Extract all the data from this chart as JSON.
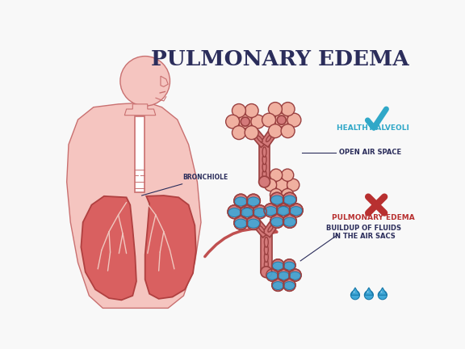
{
  "title": "PULMONARY EDEMA",
  "title_color": "#2b2d5b",
  "title_fontsize": 19,
  "bg_color": "#f8f8f8",
  "body_fill": "#f5c5c0",
  "body_stroke": "#c97070",
  "lung_fill": "#d96060",
  "lung_stroke": "#b04040",
  "bronchiole_fill": "#d47a7a",
  "bronchiole_stroke": "#9a4040",
  "alveoli_fill": "#f0b0a0",
  "alveoli_fill_sick": "#d47a7a",
  "fluid_color": "#40a8d8",
  "fluid_edge": "#1878a8",
  "healthy_check_color": "#30a8c8",
  "sick_x_color": "#b83030",
  "label_healthy": "HEALTHY ALVEOLI",
  "label_healthy_sub": "OPEN AIR SPACE",
  "label_sick": "PULMONARY EDEMA",
  "label_sick_sub1": "BUILDUP OF FLUIDS",
  "label_sick_sub2": "IN THE AIR SACS",
  "label_bronchiole": "BRONCHIOLE",
  "arrow_color": "#c05050",
  "text_dark": "#2b2d5b",
  "text_red": "#b03030",
  "watermark_color": "#d0d0d0"
}
